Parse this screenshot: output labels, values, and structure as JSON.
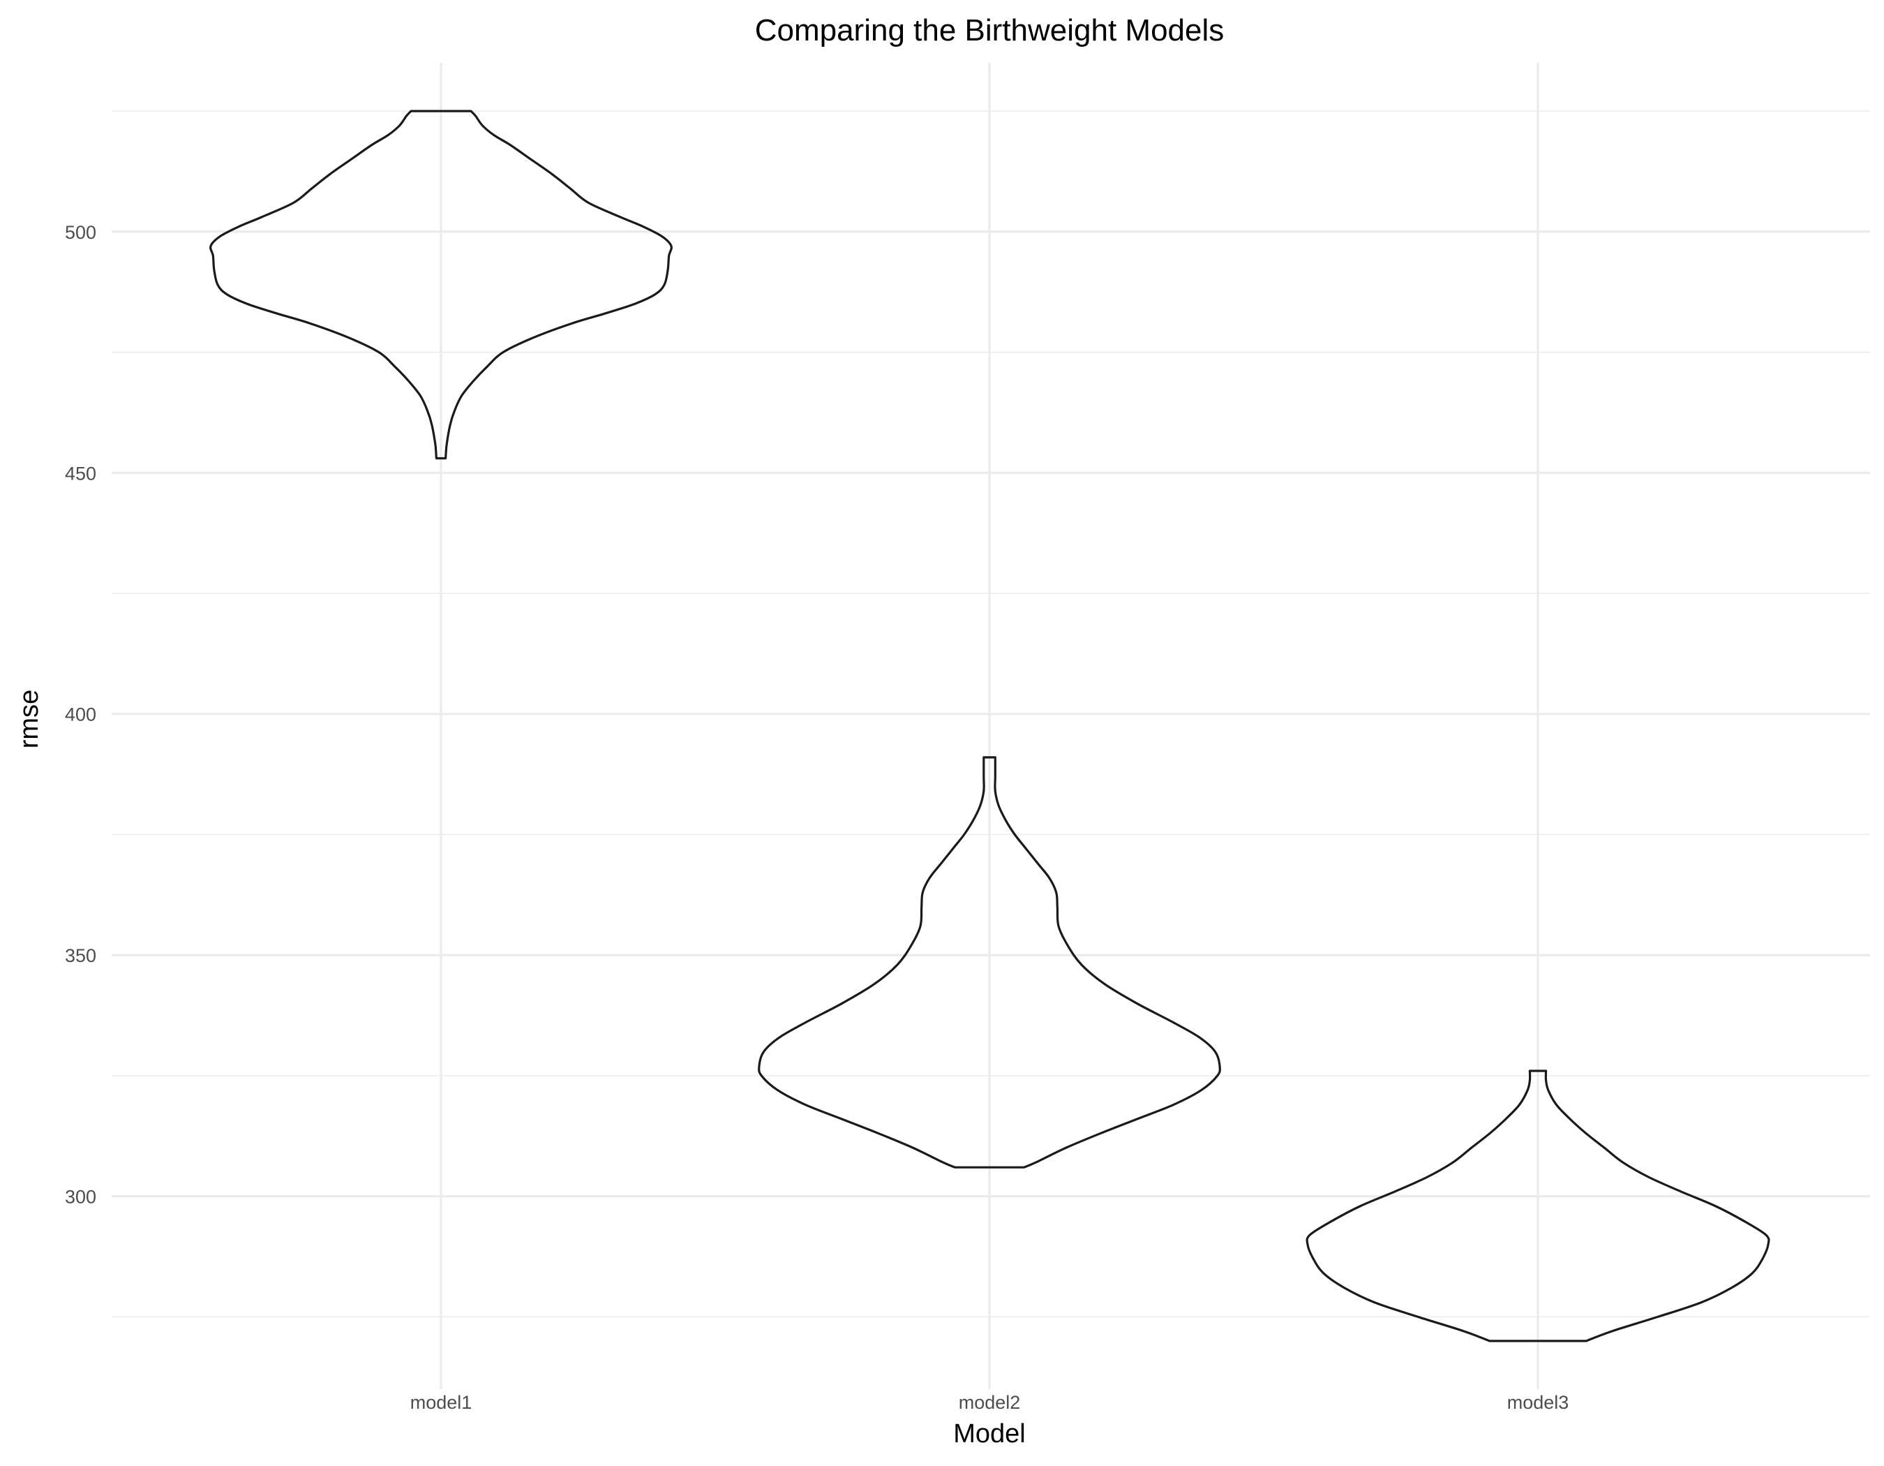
{
  "chart_data": {
    "type": "violin",
    "title": "Comparing the Birthweight Models",
    "xlabel": "Model",
    "ylabel": "rmse",
    "categories": [
      "model1",
      "model2",
      "model3"
    ],
    "ylim": [
      260,
      535
    ],
    "yticks": [
      300,
      350,
      400,
      450,
      500
    ],
    "grid": true,
    "legend": "none",
    "series": [
      {
        "category": "model1",
        "min": 453,
        "max": 525,
        "profile": [
          [
            453,
            0.02
          ],
          [
            456,
            0.025
          ],
          [
            460,
            0.04
          ],
          [
            463,
            0.06
          ],
          [
            466,
            0.09
          ],
          [
            469,
            0.14
          ],
          [
            472,
            0.2
          ],
          [
            475,
            0.27
          ],
          [
            478,
            0.4
          ],
          [
            481,
            0.57
          ],
          [
            483,
            0.71
          ],
          [
            485,
            0.84
          ],
          [
            487,
            0.93
          ],
          [
            489,
            0.97
          ],
          [
            492,
            0.985
          ],
          [
            495,
            0.99
          ],
          [
            497,
            1.0
          ],
          [
            499,
            0.96
          ],
          [
            501,
            0.88
          ],
          [
            503,
            0.78
          ],
          [
            506,
            0.64
          ],
          [
            509,
            0.56
          ],
          [
            512,
            0.48
          ],
          [
            515,
            0.39
          ],
          [
            518,
            0.3
          ],
          [
            520,
            0.23
          ],
          [
            522,
            0.18
          ],
          [
            524,
            0.15
          ],
          [
            525,
            0.13
          ]
        ]
      },
      {
        "category": "model2",
        "min": 306,
        "max": 391,
        "profile": [
          [
            306,
            0.15
          ],
          [
            307,
            0.2
          ],
          [
            310,
            0.33
          ],
          [
            313,
            0.48
          ],
          [
            316,
            0.64
          ],
          [
            319,
            0.8
          ],
          [
            322,
            0.92
          ],
          [
            325,
            0.99
          ],
          [
            327,
            1.0
          ],
          [
            330,
            0.98
          ],
          [
            333,
            0.91
          ],
          [
            336,
            0.8
          ],
          [
            340,
            0.64
          ],
          [
            344,
            0.5
          ],
          [
            348,
            0.4
          ],
          [
            352,
            0.34
          ],
          [
            356,
            0.3
          ],
          [
            360,
            0.295
          ],
          [
            363,
            0.29
          ],
          [
            366,
            0.26
          ],
          [
            369,
            0.21
          ],
          [
            372,
            0.16
          ],
          [
            375,
            0.11
          ],
          [
            378,
            0.07
          ],
          [
            381,
            0.04
          ],
          [
            384,
            0.025
          ],
          [
            387,
            0.025
          ],
          [
            391,
            0.025
          ]
        ]
      },
      {
        "category": "model3",
        "min": 270,
        "max": 326,
        "profile": [
          [
            270,
            0.21
          ],
          [
            272,
            0.32
          ],
          [
            275,
            0.52
          ],
          [
            278,
            0.71
          ],
          [
            281,
            0.84
          ],
          [
            284,
            0.93
          ],
          [
            287,
            0.975
          ],
          [
            290,
            1.0
          ],
          [
            292,
            0.99
          ],
          [
            295,
            0.89
          ],
          [
            298,
            0.77
          ],
          [
            301,
            0.62
          ],
          [
            304,
            0.48
          ],
          [
            307,
            0.37
          ],
          [
            310,
            0.29
          ],
          [
            313,
            0.21
          ],
          [
            316,
            0.14
          ],
          [
            319,
            0.08
          ],
          [
            322,
            0.045
          ],
          [
            324,
            0.035
          ],
          [
            326,
            0.035
          ]
        ]
      }
    ]
  }
}
